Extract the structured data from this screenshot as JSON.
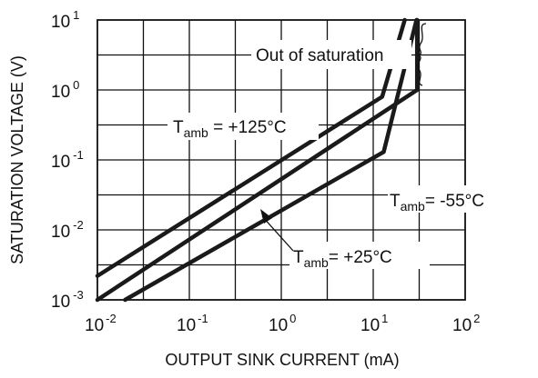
{
  "chart_data": {
    "type": "line",
    "xlabel": "OUTPUT SINK CURRENT (mA)",
    "ylabel": "SATURATION VOLTAGE (V)",
    "xscale": "log",
    "yscale": "log",
    "xlim": [
      0.01,
      100
    ],
    "ylim": [
      0.001,
      10
    ],
    "x_ticks": [
      {
        "base": "10",
        "exp": "-2"
      },
      {
        "base": "10",
        "exp": "-1"
      },
      {
        "base": "10",
        "exp": "0"
      },
      {
        "base": "10",
        "exp": "1"
      },
      {
        "base": "10",
        "exp": "2"
      }
    ],
    "y_ticks": [
      {
        "base": "10",
        "exp": "-3"
      },
      {
        "base": "10",
        "exp": "-2"
      },
      {
        "base": "10",
        "exp": "-1"
      },
      {
        "base": "10",
        "exp": "0"
      },
      {
        "base": "10",
        "exp": "1"
      }
    ],
    "grid": true,
    "series": [
      {
        "key": "t125",
        "label_main": "T",
        "label_sub": "amb",
        "label_rest": " = +125°C",
        "x": [
          0.01,
          12.5,
          22
        ],
        "y": [
          0.0022,
          0.8,
          10
        ]
      },
      {
        "key": "t25",
        "label_main": "T",
        "label_sub": "amb",
        "label_rest": "= +25°C",
        "x": [
          0.01,
          30,
          30
        ],
        "y": [
          0.001,
          1.0,
          10
        ]
      },
      {
        "key": "tm55",
        "label_main": "T",
        "label_sub": "amb",
        "label_rest": "= -55°C",
        "x": [
          0.02,
          13,
          29.5
        ],
        "y": [
          0.001,
          0.13,
          10
        ]
      }
    ],
    "annotations": [
      {
        "text": "Out of saturation"
      }
    ]
  }
}
